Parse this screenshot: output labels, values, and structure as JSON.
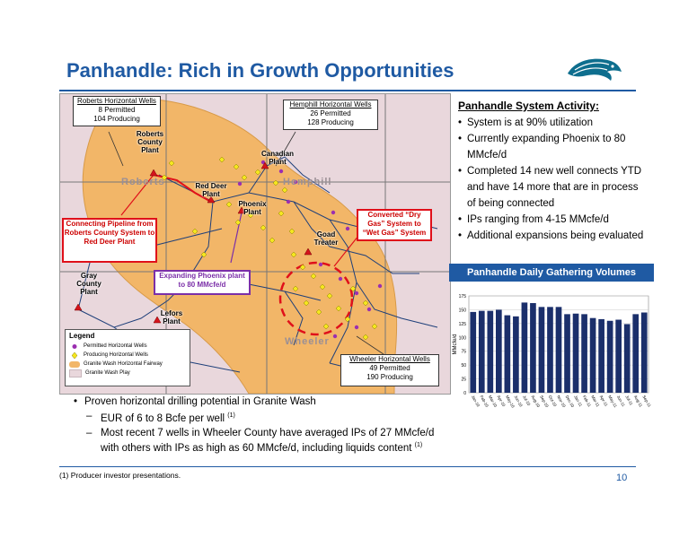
{
  "title": "Panhandle: Rich in Growth Opportunities",
  "logo": {
    "icon": "eagle-head-icon",
    "color": "#0e6e8e"
  },
  "map": {
    "callouts": {
      "roberts": {
        "header": "Roberts Horizontal Wells",
        "line1": "8 Permitted",
        "line2": "104 Producing"
      },
      "hemphill": {
        "header": "Hemphill Horizontal Wells",
        "line1": "26 Permitted",
        "line2": "128 Producing"
      },
      "wheeler": {
        "header": "Wheeler Horizontal Wells",
        "line1": "49 Permitted",
        "line2": "190 Producing"
      },
      "pipeline": "Connecting Pipeline from Roberts County System to Red Deer Plant",
      "phoenix": "Expanding Phoenix plant to 80 MMcfe/d",
      "converted": "Converted “Dry Gas” System to “Wet Gas” System"
    },
    "plants": {
      "roberts": "Roberts County Plant",
      "canadian": "Canadian Plant",
      "red_deer": "Red Deer Plant",
      "phoenix": "Phoenix Plant",
      "goad": "Goad Treater",
      "gray": "Gray County Plant",
      "lefors": "Lefors Plant"
    },
    "counties": {
      "roberts": "Roberts",
      "hemphill": "Hemphill",
      "wheeler": "Wheeler"
    },
    "legend": {
      "title": "Legend",
      "items": [
        "Permitted Horizontal Wells",
        "Producing Horizontal Wells",
        "Granite Wash Horizontal Fairway",
        "Granite Wash Play"
      ]
    }
  },
  "activity": {
    "heading": "Panhandle System Activity:",
    "bullets": [
      "System is at 90% utilization",
      "Currently expanding Phoenix to 80 MMcfe/d",
      "Completed 14 new well connects YTD and have 14 more that are in process of being connected",
      "IPs ranging from 4-15 MMcfe/d",
      "Additional expansions being evaluated"
    ]
  },
  "chart_header": "Panhandle Daily Gathering Volumes",
  "chart_data": {
    "type": "bar",
    "ylabel": "MMcfe/d",
    "ylim": [
      0,
      175
    ],
    "yticks": [
      0,
      25,
      50,
      75,
      100,
      125,
      150,
      175
    ],
    "categories": [
      "Jan-10",
      "Feb-10",
      "Mar-10",
      "Apr-10",
      "May-10",
      "Jun-10",
      "Jul-10",
      "Aug-10",
      "Sep-10",
      "Oct-10",
      "Nov-10",
      "Dec-10",
      "Jan-11",
      "Feb-11",
      "Mar-11",
      "Apr-11",
      "May-11",
      "Jun-11",
      "Jul-11",
      "Aug-11",
      "Sep-11"
    ],
    "values": [
      146,
      148,
      148,
      150,
      140,
      138,
      163,
      162,
      155,
      155,
      155,
      142,
      143,
      142,
      135,
      133,
      130,
      132,
      124,
      142,
      145
    ],
    "color": "#1b2f6b"
  },
  "lower": {
    "bullet": "Proven horizontal drilling potential in Granite Wash",
    "sub1": "EUR of 6 to 8 Bcfe per well",
    "sub1_ref": "(1)",
    "sub2": "Most recent 7 wells in Wheeler County have averaged IPs of 27 MMcfe/d with others with IPs as high as 60 MMcfe/d, including liquids content",
    "sub2_ref": "(1)"
  },
  "footnote": "(1) Producer investor presentations.",
  "page_number": "10"
}
